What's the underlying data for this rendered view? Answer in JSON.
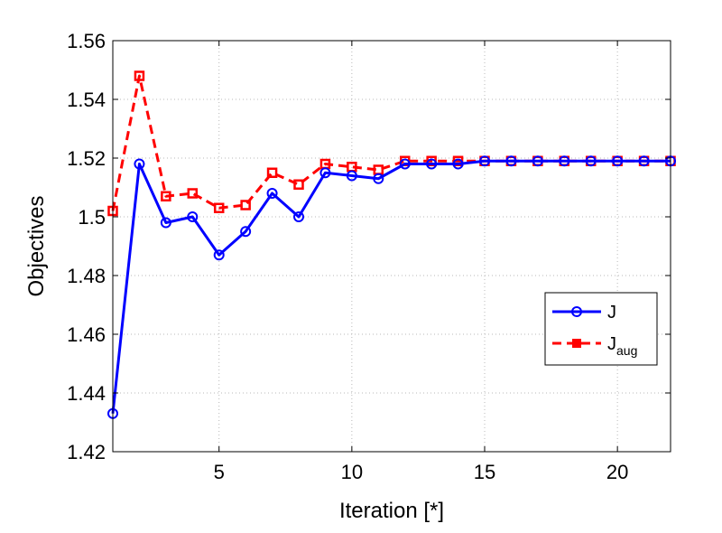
{
  "chart_data": {
    "type": "line",
    "xlabel": "Iteration [*]",
    "ylabel": "Objectives",
    "xlim": [
      1,
      22
    ],
    "ylim": [
      1.42,
      1.56
    ],
    "xticks": [
      5,
      10,
      15,
      20
    ],
    "yticks": [
      1.42,
      1.44,
      1.46,
      1.48,
      1.5,
      1.52,
      1.54,
      1.56
    ],
    "ytick_labels": [
      "1.42",
      "1.44",
      "1.46",
      "1.48",
      "1.5",
      "1.52",
      "1.54",
      "1.56"
    ],
    "grid": true,
    "legend_position": "center-right",
    "x": [
      1,
      2,
      3,
      4,
      5,
      6,
      7,
      8,
      9,
      10,
      11,
      12,
      13,
      14,
      15,
      16,
      17,
      18,
      19,
      20,
      21,
      22
    ],
    "series": [
      {
        "name": "J",
        "color": "#0000ff",
        "line_style": "solid",
        "marker": "circle-open",
        "values": [
          1.433,
          1.518,
          1.498,
          1.5,
          1.487,
          1.495,
          1.508,
          1.5,
          1.515,
          1.514,
          1.513,
          1.518,
          1.518,
          1.518,
          1.519,
          1.519,
          1.519,
          1.519,
          1.519,
          1.519,
          1.519,
          1.519
        ]
      },
      {
        "name": "J",
        "subscript": "aug",
        "color": "#ff0000",
        "line_style": "dashed",
        "marker": "square",
        "values": [
          1.502,
          1.548,
          1.507,
          1.508,
          1.503,
          1.504,
          1.515,
          1.511,
          1.518,
          1.517,
          1.516,
          1.519,
          1.519,
          1.519,
          1.519,
          1.519,
          1.519,
          1.519,
          1.519,
          1.519,
          1.519,
          1.519
        ]
      }
    ]
  }
}
